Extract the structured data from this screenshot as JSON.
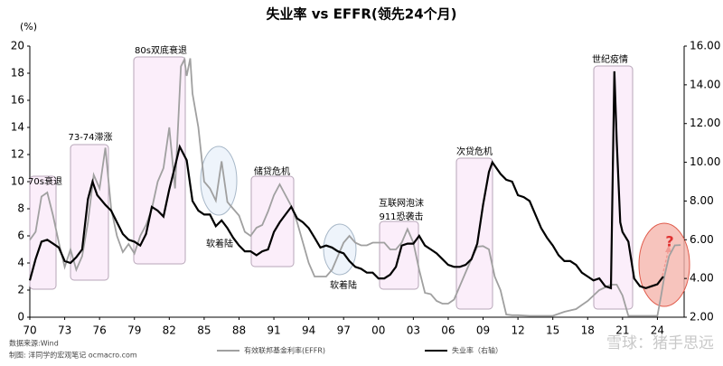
{
  "chart_data": {
    "type": "line",
    "title": "失业率 vs EFFR(领先24个月)",
    "y_unit": "(%)",
    "xlim": [
      1970,
      2026.3
    ],
    "xticks": [
      {
        "value": 1970,
        "label": "70"
      },
      {
        "value": 1973,
        "label": "73"
      },
      {
        "value": 1976,
        "label": "76"
      },
      {
        "value": 1979,
        "label": "79"
      },
      {
        "value": 1982,
        "label": "82"
      },
      {
        "value": 1985,
        "label": "85"
      },
      {
        "value": 1988,
        "label": "88"
      },
      {
        "value": 1991,
        "label": "91"
      },
      {
        "value": 1994,
        "label": "94"
      },
      {
        "value": 1997,
        "label": "97"
      },
      {
        "value": 2000,
        "label": "00"
      },
      {
        "value": 2003,
        "label": "03"
      },
      {
        "value": 2006,
        "label": "06"
      },
      {
        "value": 2009,
        "label": "09"
      },
      {
        "value": 2012,
        "label": "12"
      },
      {
        "value": 2015,
        "label": "15"
      },
      {
        "value": 2018,
        "label": "18"
      },
      {
        "value": 2021,
        "label": "21"
      },
      {
        "value": 2024,
        "label": "24"
      }
    ],
    "ylim": [
      0,
      20
    ],
    "yticks": [
      0,
      2,
      4,
      6,
      8,
      10,
      12,
      14,
      16,
      18,
      20
    ],
    "y2lim": [
      2,
      16
    ],
    "y2ticks": [
      {
        "value": 2,
        "label": "2.00"
      },
      {
        "value": 4,
        "label": "4.00"
      },
      {
        "value": 6,
        "label": "6.00"
      },
      {
        "value": 8,
        "label": "8.00"
      },
      {
        "value": 10,
        "label": "10.00"
      },
      {
        "value": 12,
        "label": "12.00"
      },
      {
        "value": 14,
        "label": "14.00"
      },
      {
        "value": 16,
        "label": "16.00"
      }
    ],
    "series": [
      {
        "name": "有效联邦基金利率(EFFR)",
        "color": "#a0a0a0",
        "axis": "y",
        "x": [
          1970,
          1970.5,
          1971,
          1971.5,
          1972,
          1972.5,
          1973,
          1973.5,
          1974,
          1974.5,
          1975,
          1975.5,
          1976,
          1976.5,
          1977,
          1977.5,
          1978,
          1978.5,
          1979,
          1979.5,
          1980,
          1980.5,
          1981,
          1981.5,
          1982,
          1982.5,
          1983,
          1983.3,
          1983.5,
          1983.8,
          1984,
          1984.5,
          1985,
          1985.5,
          1986,
          1986.5,
          1987,
          1987.5,
          1988,
          1988.5,
          1989,
          1989.5,
          1990,
          1990.5,
          1991,
          1991.5,
          1992,
          1992.5,
          1993,
          1993.5,
          1994,
          1994.5,
          1995,
          1995.5,
          1996,
          1996.5,
          1997,
          1997.5,
          1998,
          1998.5,
          1999,
          1999.5,
          2000,
          2000.5,
          2001,
          2001.5,
          2002,
          2002.5,
          2003,
          2003.5,
          2004,
          2004.5,
          2005,
          2005.5,
          2006,
          2006.5,
          2007,
          2007.5,
          2008,
          2008.5,
          2009,
          2009.5,
          2010,
          2010.5,
          2011,
          2011.5,
          2012,
          2013,
          2014,
          2015,
          2016,
          2017,
          2017.5,
          2018,
          2018.5,
          2019,
          2019.5,
          2020,
          2020.5,
          2021,
          2021.5,
          2022,
          2023,
          2024,
          2024.3,
          2024.6,
          2025,
          2025.5,
          2026
        ],
        "values": [
          5.7,
          6.3,
          8.9,
          9.2,
          7.5,
          5.5,
          3.7,
          5.0,
          3.5,
          4.5,
          7.0,
          10.5,
          9.5,
          12.5,
          8.0,
          6.0,
          4.8,
          5.4,
          4.7,
          6.0,
          6.8,
          8.0,
          10.0,
          11.0,
          14.0,
          9.5,
          18.5,
          19.0,
          17.8,
          19.1,
          16.5,
          14.0,
          10.0,
          9.5,
          8.6,
          11.5,
          8.5,
          8.0,
          7.5,
          6.3,
          6.0,
          6.6,
          6.8,
          7.8,
          9.0,
          9.8,
          9.0,
          8.2,
          7.0,
          5.5,
          4.0,
          3.0,
          3.0,
          3.0,
          3.5,
          4.5,
          5.5,
          6.0,
          5.5,
          5.3,
          5.3,
          5.5,
          5.5,
          5.5,
          5.0,
          5.0,
          5.5,
          6.5,
          5.5,
          3.5,
          1.8,
          1.7,
          1.2,
          1.0,
          1.0,
          1.3,
          2.3,
          3.3,
          4.3,
          5.2,
          5.25,
          5.0,
          3.0,
          2.0,
          0.2,
          0.15,
          0.15,
          0.1,
          0.1,
          0.1,
          0.4,
          0.6,
          0.9,
          1.2,
          1.6,
          2.0,
          2.2,
          2.4,
          2.4,
          1.6,
          0.1,
          0.1,
          0.1,
          0.1,
          1.5,
          3.0,
          4.5,
          5.3,
          5.33
        ]
      },
      {
        "name": "失业率（右轴）",
        "color": "#000000",
        "axis": "y2",
        "x": [
          1970,
          1970.5,
          1971,
          1971.5,
          1972,
          1972.5,
          1973,
          1973.5,
          1974,
          1974.5,
          1975,
          1975.4,
          1975.8,
          1976.5,
          1977,
          1977.5,
          1978,
          1978.5,
          1979,
          1979.5,
          1980,
          1980.5,
          1981,
          1981.5,
          1982,
          1982.5,
          1982.9,
          1983.5,
          1984,
          1984.5,
          1985,
          1985.5,
          1986,
          1986.5,
          1987,
          1987.5,
          1988,
          1988.5,
          1989,
          1989.5,
          1990,
          1990.5,
          1991,
          1991.5,
          1992,
          1992.5,
          1993,
          1993.5,
          1994,
          1994.5,
          1995,
          1995.5,
          1996,
          1996.5,
          1997,
          1997.5,
          1998,
          1998.5,
          1999,
          1999.5,
          2000,
          2000.5,
          2001,
          2001.5,
          2002,
          2002.5,
          2003,
          2003.5,
          2004,
          2004.5,
          2005,
          2005.5,
          2006,
          2006.5,
          2007,
          2007.5,
          2008,
          2008.5,
          2009,
          2009.5,
          2009.8,
          2010.5,
          2011,
          2011.5,
          2012,
          2012.5,
          2013,
          2013.5,
          2014,
          2014.5,
          2015,
          2015.5,
          2016,
          2016.5,
          2017,
          2017.5,
          2018,
          2018.5,
          2019,
          2019.5,
          2020,
          2020.3,
          2020.5,
          2020.8,
          2021,
          2021.5,
          2022,
          2022.5,
          2023,
          2023.5,
          2024,
          2024.5
        ],
        "values": [
          3.9,
          5.0,
          5.9,
          6.0,
          5.8,
          5.6,
          4.9,
          4.8,
          5.1,
          5.5,
          8.1,
          9.0,
          8.3,
          7.8,
          7.5,
          6.9,
          6.3,
          6.0,
          5.9,
          5.7,
          6.3,
          7.7,
          7.5,
          7.2,
          8.6,
          9.8,
          10.8,
          10.1,
          8.0,
          7.5,
          7.3,
          7.3,
          6.7,
          7.0,
          6.6,
          6.1,
          5.7,
          5.4,
          5.4,
          5.2,
          5.4,
          5.5,
          6.4,
          6.9,
          7.3,
          7.7,
          7.1,
          6.9,
          6.6,
          6.1,
          5.6,
          5.7,
          5.6,
          5.4,
          5.3,
          4.9,
          4.6,
          4.5,
          4.3,
          4.3,
          4.0,
          4.0,
          4.2,
          4.6,
          5.7,
          5.8,
          5.8,
          6.2,
          5.7,
          5.5,
          5.3,
          5.0,
          4.7,
          4.6,
          4.6,
          4.7,
          5.0,
          5.8,
          7.8,
          9.5,
          10.0,
          9.4,
          9.1,
          9.0,
          8.3,
          8.2,
          8.0,
          7.3,
          6.6,
          6.1,
          5.7,
          5.2,
          4.9,
          4.9,
          4.7,
          4.3,
          4.1,
          3.9,
          4.0,
          3.6,
          3.5,
          14.7,
          11.1,
          6.9,
          6.4,
          5.9,
          4.0,
          3.6,
          3.5,
          3.6,
          3.7,
          4.1
        ]
      }
    ],
    "annotations": [
      "70s衰退",
      "73-74滞涨",
      "80s双底衰退",
      "软着陆",
      "储贷危机",
      "软着陆",
      "互联网泡沫",
      "911恐袭击",
      "次贷危机",
      "世纪疫情",
      "?"
    ],
    "source": "数据来源:Wind",
    "credit": "制图: 洋同学的宏观笔记 ocmacro.com",
    "watermark": "雪球：猪手思远"
  }
}
